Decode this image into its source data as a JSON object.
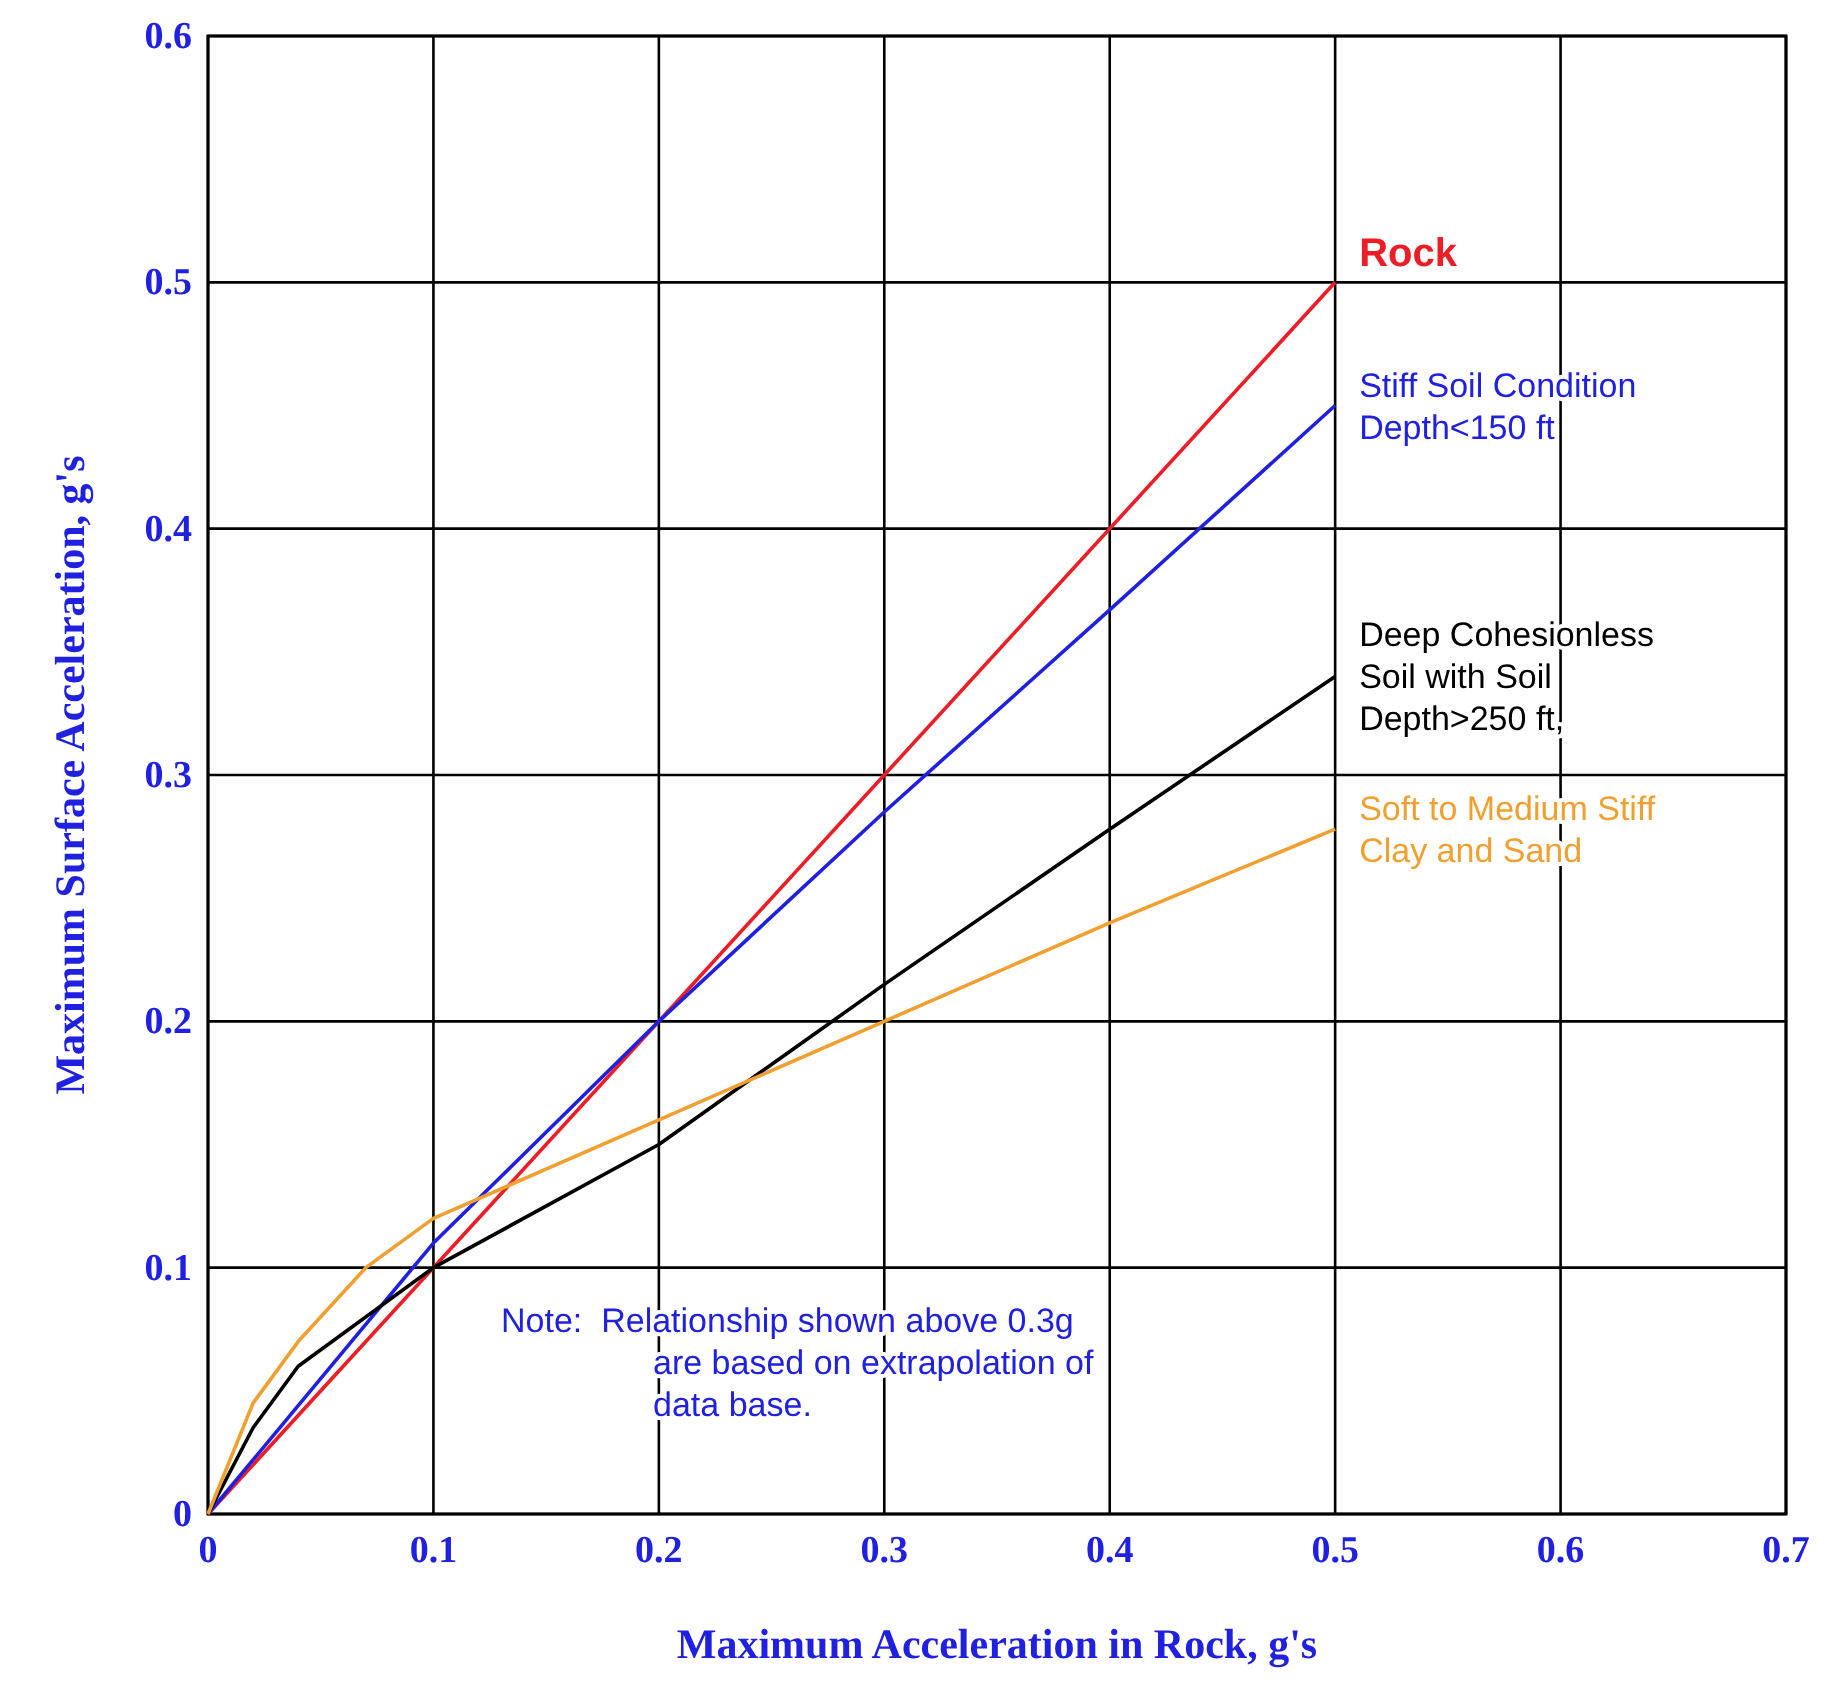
{
  "chart_data": {
    "type": "line",
    "xlabel": "Maximum Acceleration in Rock, g's",
    "ylabel": "Maximum Surface Acceleration, g's",
    "series": [
      {
        "name": "Rock",
        "color": "#ee1c25",
        "x": [
          0,
          0.5
        ],
        "values": [
          0,
          0.5
        ]
      },
      {
        "name": "Stiff Soil Condition\nDepth<150 ft",
        "color": "#2020e0",
        "x": [
          0,
          0.1,
          0.2,
          0.3,
          0.4,
          0.5
        ],
        "values": [
          0,
          0.11,
          0.2,
          0.285,
          0.367,
          0.45
        ]
      },
      {
        "name": "Deep Cohesionless\nSoil with Soil\nDepth>250 ft,",
        "color": "#000000",
        "x": [
          0,
          0.02,
          0.04,
          0.1,
          0.2,
          0.3,
          0.4,
          0.5
        ],
        "values": [
          0,
          0.035,
          0.06,
          0.1,
          0.15,
          0.215,
          0.278,
          0.34
        ]
      },
      {
        "name": "Soft to Medium Stiff\nClay and Sand",
        "color": "#f0a030",
        "x": [
          0,
          0.02,
          0.04,
          0.07,
          0.1,
          0.2,
          0.3,
          0.4,
          0.5
        ],
        "values": [
          0,
          0.045,
          0.07,
          0.1,
          0.12,
          0.16,
          0.2,
          0.24,
          0.278
        ]
      }
    ],
    "xlim": [
      0,
      0.7
    ],
    "xticks": [
      0,
      0.1,
      0.2,
      0.3,
      0.4,
      0.5,
      0.6,
      0.7
    ],
    "ylim": [
      0,
      0.6
    ],
    "yticks": [
      0,
      0.1,
      0.2,
      0.3,
      0.4,
      0.5,
      0.6
    ],
    "grid": true,
    "marker": "none",
    "line_style": "solid",
    "annotations": [
      "Note:  Relationship shown above 0.3g\nare based on extrapolation of\ndata base."
    ]
  }
}
